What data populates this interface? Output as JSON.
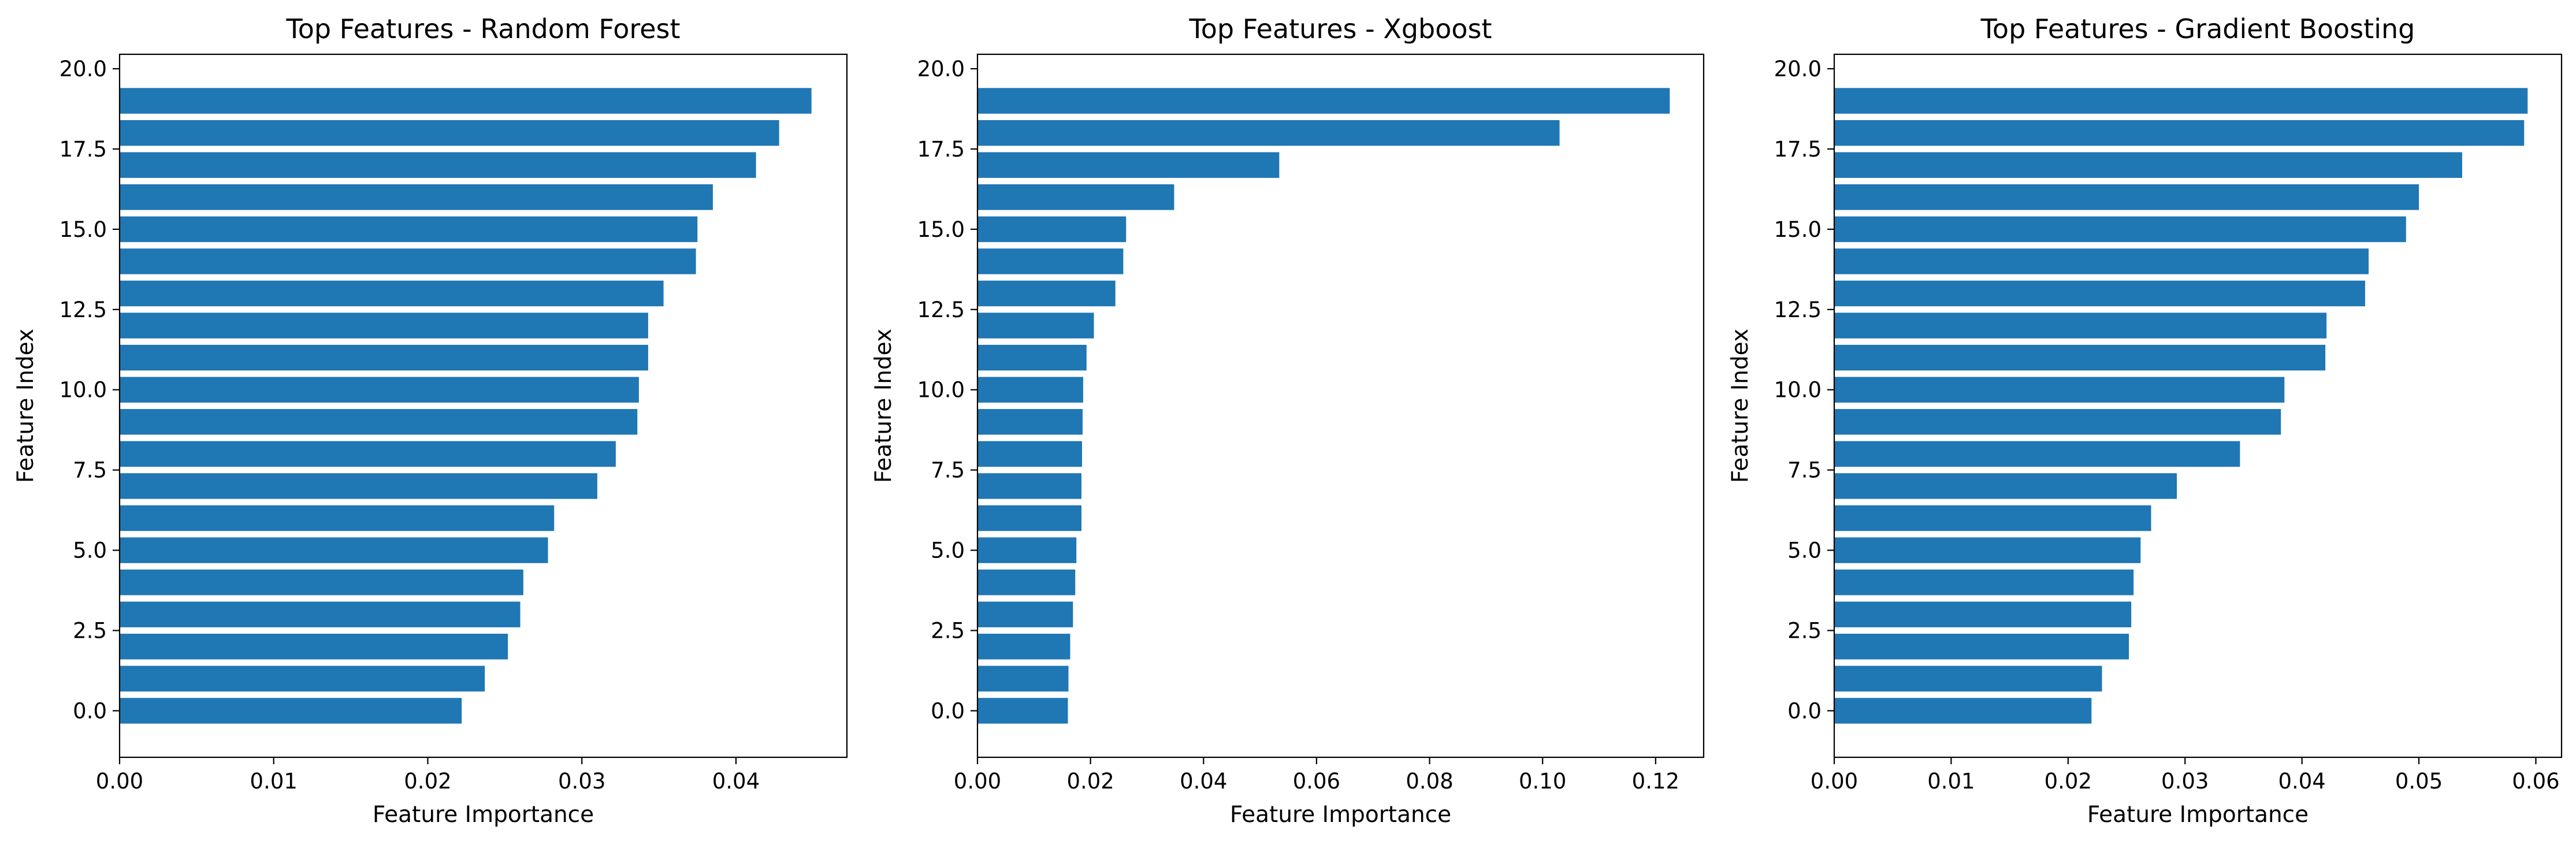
{
  "chart_data": [
    {
      "type": "bar",
      "orientation": "horizontal",
      "title": "Top Features - Random Forest",
      "xlabel": "Feature Importance",
      "ylabel": "Feature Index",
      "color": "#1f77b4",
      "categories": [
        0,
        1,
        2,
        3,
        4,
        5,
        6,
        7,
        8,
        9,
        10,
        11,
        12,
        13,
        14,
        15,
        16,
        17,
        18,
        19
      ],
      "values": [
        0.0222,
        0.0237,
        0.0252,
        0.026,
        0.0262,
        0.0278,
        0.0282,
        0.031,
        0.0322,
        0.0336,
        0.0337,
        0.0343,
        0.0343,
        0.0353,
        0.0374,
        0.0375,
        0.0385,
        0.0413,
        0.0428,
        0.0449
      ],
      "xlim": [
        0,
        0.0472
      ],
      "ylim": [
        -1.45,
        20.45
      ],
      "xticks": [
        0.0,
        0.01,
        0.02,
        0.03,
        0.04
      ],
      "xtick_labels": [
        "0.00",
        "0.01",
        "0.02",
        "0.03",
        "0.04"
      ],
      "yticks": [
        0.0,
        2.5,
        5.0,
        7.5,
        10.0,
        12.5,
        15.0,
        17.5,
        20.0
      ],
      "ytick_labels": [
        "0.0",
        "2.5",
        "5.0",
        "7.5",
        "10.0",
        "12.5",
        "15.0",
        "17.5",
        "20.0"
      ],
      "grid": false,
      "legend": false
    },
    {
      "type": "bar",
      "orientation": "horizontal",
      "title": "Top Features - Xgboost",
      "xlabel": "Feature Importance",
      "ylabel": "Feature Index",
      "color": "#1f77b4",
      "categories": [
        0,
        1,
        2,
        3,
        4,
        5,
        6,
        7,
        8,
        9,
        10,
        11,
        12,
        13,
        14,
        15,
        16,
        17,
        18,
        19
      ],
      "values": [
        0.016,
        0.0161,
        0.0164,
        0.0169,
        0.0173,
        0.0175,
        0.0184,
        0.0184,
        0.0185,
        0.0186,
        0.0187,
        0.0193,
        0.0206,
        0.0244,
        0.0258,
        0.0263,
        0.0348,
        0.0534,
        0.103,
        0.1225
      ],
      "xlim": [
        0,
        0.1285
      ],
      "ylim": [
        -1.45,
        20.45
      ],
      "xticks": [
        0.0,
        0.02,
        0.04,
        0.06,
        0.08,
        0.1,
        0.12
      ],
      "xtick_labels": [
        "0.00",
        "0.02",
        "0.04",
        "0.06",
        "0.08",
        "0.10",
        "0.12"
      ],
      "yticks": [
        0.0,
        2.5,
        5.0,
        7.5,
        10.0,
        12.5,
        15.0,
        17.5,
        20.0
      ],
      "ytick_labels": [
        "0.0",
        "2.5",
        "5.0",
        "7.5",
        "10.0",
        "12.5",
        "15.0",
        "17.5",
        "20.0"
      ],
      "grid": false,
      "legend": false
    },
    {
      "type": "bar",
      "orientation": "horizontal",
      "title": "Top Features - Gradient Boosting",
      "xlabel": "Feature Importance",
      "ylabel": "Feature Index",
      "color": "#1f77b4",
      "categories": [
        0,
        1,
        2,
        3,
        4,
        5,
        6,
        7,
        8,
        9,
        10,
        11,
        12,
        13,
        14,
        15,
        16,
        17,
        18,
        19
      ],
      "values": [
        0.022,
        0.0229,
        0.0252,
        0.0254,
        0.0256,
        0.0262,
        0.0271,
        0.0293,
        0.0347,
        0.0382,
        0.0385,
        0.042,
        0.0421,
        0.0454,
        0.0457,
        0.0489,
        0.05,
        0.0537,
        0.059,
        0.0593
      ],
      "xlim": [
        0,
        0.0622
      ],
      "ylim": [
        -1.45,
        20.45
      ],
      "xticks": [
        0.0,
        0.01,
        0.02,
        0.03,
        0.04,
        0.05,
        0.06
      ],
      "xtick_labels": [
        "0.00",
        "0.01",
        "0.02",
        "0.03",
        "0.04",
        "0.05",
        "0.06"
      ],
      "yticks": [
        0.0,
        2.5,
        5.0,
        7.5,
        10.0,
        12.5,
        15.0,
        17.5,
        20.0
      ],
      "ytick_labels": [
        "0.0",
        "2.5",
        "5.0",
        "7.5",
        "10.0",
        "12.5",
        "15.0",
        "17.5",
        "20.0"
      ],
      "grid": false,
      "legend": false
    }
  ]
}
